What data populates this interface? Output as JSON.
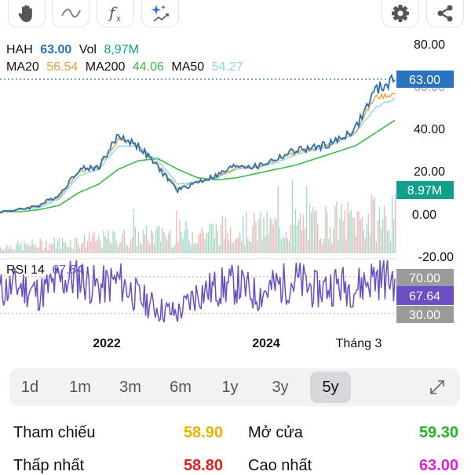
{
  "toolbar": {
    "left_icons": [
      "hand-icon",
      "trend-line-icon",
      "function-icon",
      "magic-sparkle-icon"
    ],
    "right_icons": [
      "gear-icon",
      "share-icon"
    ]
  },
  "header": {
    "ticker": "HAH",
    "price": "63.00",
    "vol_label": "Vol",
    "vol": "8,97M",
    "ma20_label": "MA20",
    "ma20": "56.54",
    "ma200_label": "MA200",
    "ma200": "44.06",
    "ma50_label": "MA50",
    "ma50": "54.27"
  },
  "price_axis": {
    "ticks": [
      "80.00",
      "60.00",
      "40.00",
      "20.00",
      "0.00",
      "-20.00"
    ],
    "price_badge": "63.00",
    "volume_badge": "8.97M"
  },
  "rsi": {
    "label": "RSI 14",
    "value": "67.64",
    "upper": "70.00",
    "lower": "30.00"
  },
  "time_axis": [
    "2022",
    "2024",
    "Tháng 3"
  ],
  "timeframes": [
    "1d",
    "1m",
    "3m",
    "6m",
    "1y",
    "3y",
    "5y"
  ],
  "active_timeframe": "5y",
  "stats": {
    "ref_label": "Tham chiếu",
    "ref_value": "58.90",
    "open_label": "Mở cửa",
    "open_value": "59.30",
    "low_label": "Thấp nhất",
    "low_value": "58.80",
    "high_label": "Cao nhất",
    "high_value": "63.00"
  },
  "colors": {
    "price_line": "#2a6fb5",
    "ma20": "#e8a23a",
    "ma200": "#3cb84a",
    "ma50": "#8fd3f0",
    "rsi_line": "#6a4fc2",
    "price_badge": "#2a73c0",
    "volume_badge": "#12a08c",
    "rsi_badge": "#6a4fc2",
    "ref": "#e8b400",
    "open": "#22b422",
    "low": "#e02020",
    "high": "#e020d8"
  },
  "chart_data": {
    "type": "line",
    "x": [
      "2020-05",
      "2020-11",
      "2021-03",
      "2021-06",
      "2021-09",
      "2021-11",
      "2022-01",
      "2022-03",
      "2022-05",
      "2022-08",
      "2022-11",
      "2023-01",
      "2023-04",
      "2023-07",
      "2023-10",
      "2024-01",
      "2024-04",
      "2024-07",
      "2024-10",
      "2025-01",
      "2025-03"
    ],
    "series": [
      {
        "name": "HAH",
        "values": [
          1,
          2,
          4,
          9,
          21,
          22,
          37,
          32,
          22,
          11,
          15,
          18,
          23,
          22,
          26,
          30,
          31,
          34,
          40,
          58,
          63
        ]
      },
      {
        "name": "MA20",
        "values": [
          1,
          2,
          4,
          8,
          20,
          22,
          35,
          32,
          23,
          12,
          15,
          18,
          22,
          22,
          25,
          29,
          31,
          34,
          39,
          55,
          56.54
        ]
      },
      {
        "name": "MA50",
        "values": [
          1,
          2,
          3,
          7,
          18,
          21,
          32,
          32,
          25,
          14,
          15,
          17,
          21,
          22,
          24,
          28,
          30,
          33,
          38,
          50,
          54.27
        ]
      },
      {
        "name": "MA200",
        "values": [
          1,
          1,
          2,
          4,
          10,
          14,
          21,
          25,
          26,
          21,
          17,
          16,
          17,
          19,
          21,
          23,
          26,
          29,
          32,
          38,
          44.06
        ]
      }
    ],
    "rsi_values": [
      55,
      60,
      52,
      65,
      70,
      58,
      66,
      48,
      35,
      30,
      52,
      58,
      62,
      50,
      60,
      66,
      55,
      62,
      58,
      70,
      67.64
    ],
    "ylim": [
      -20,
      80
    ],
    "yticks": [
      80,
      60,
      40,
      20,
      0,
      -20
    ],
    "rsi_levels": [
      70,
      30
    ],
    "last_close": 63.0,
    "last_volume": "8.97M",
    "grid": false
  }
}
